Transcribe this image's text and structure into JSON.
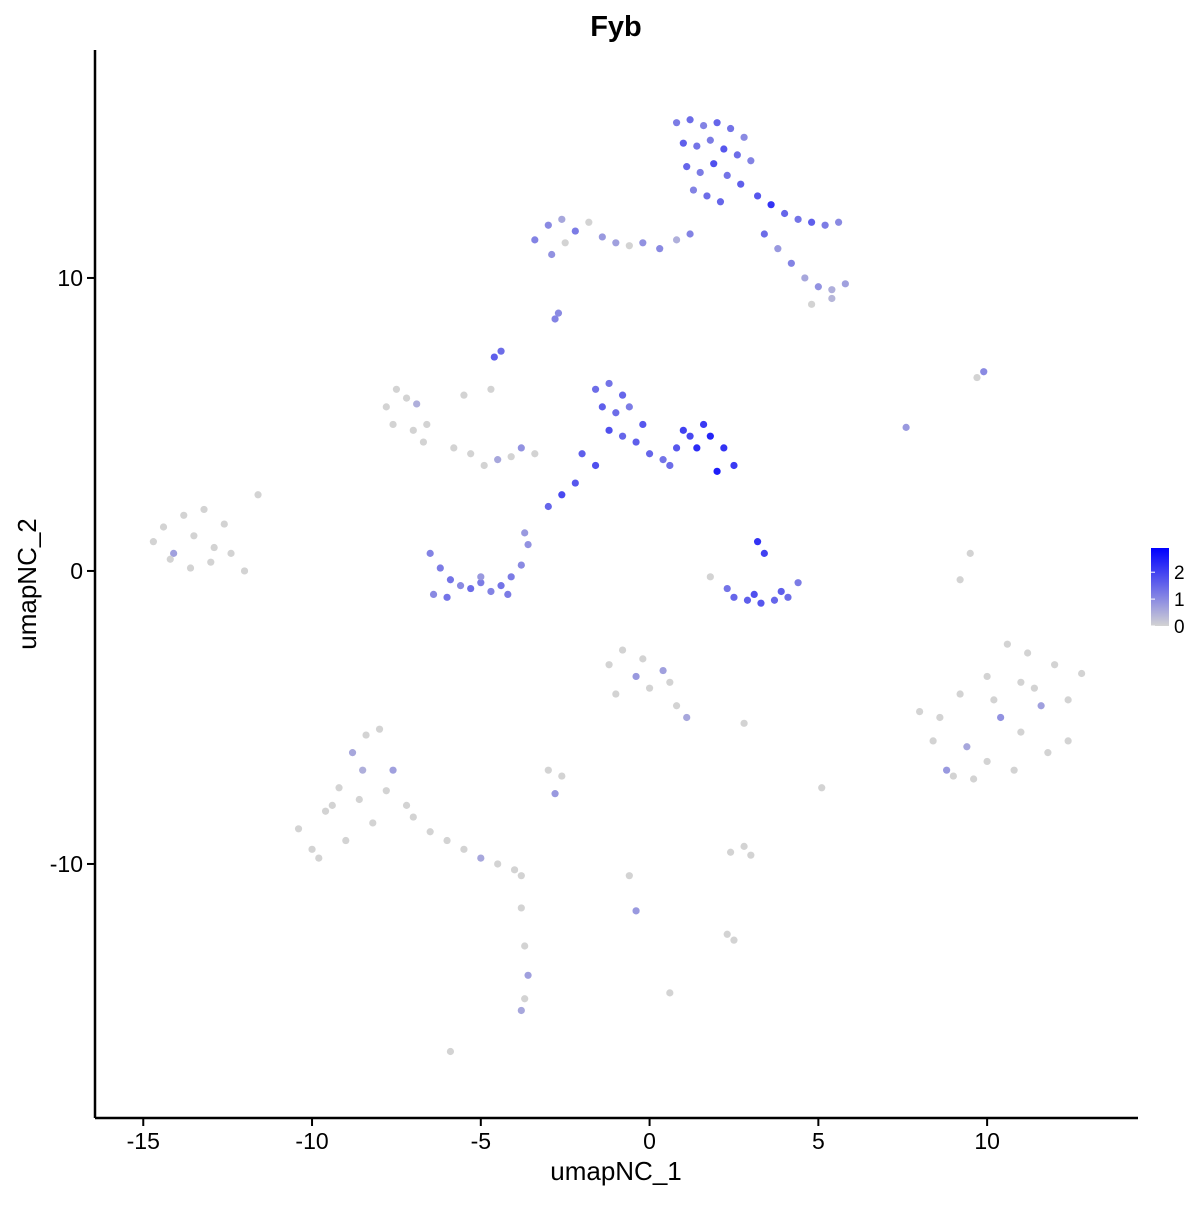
{
  "chart_data": {
    "type": "scatter",
    "title": "Fyb",
    "x_label": "umapNC_1",
    "y_label": "umapNC_2",
    "xlim": [
      -16.43,
      14.47
    ],
    "ylim": [
      -18.67,
      17.78
    ],
    "xticks": [
      -15,
      -10,
      -5,
      0,
      5,
      10
    ],
    "yticks": [
      -10,
      0,
      10
    ],
    "grid": false,
    "low_color": "#d3d3d3",
    "high_color": "#0000ff",
    "color_lim": [
      0,
      2.9
    ],
    "color_ticks": [
      0,
      1,
      2
    ],
    "x": [
      0.8,
      1.2,
      1.6,
      2.0,
      2.4,
      2.8,
      1.0,
      1.4,
      1.8,
      2.2,
      2.6,
      3.0,
      1.1,
      1.5,
      1.9,
      2.3,
      2.7,
      1.3,
      1.7,
      2.1,
      3.2,
      3.6,
      4.0,
      4.4,
      4.8,
      5.2,
      5.6,
      3.4,
      3.8,
      4.2,
      4.6,
      5.0,
      5.4,
      5.8,
      4.8,
      5.4,
      -3.4,
      -3.0,
      -2.6,
      -2.2,
      -1.8,
      -1.4,
      -1.0,
      -0.6,
      -0.2,
      0.3,
      0.8,
      1.2,
      -2.9,
      -2.5,
      -2.8,
      -2.7,
      -4.6,
      -4.4,
      -1.6,
      -1.2,
      -0.8,
      -1.4,
      -1.0,
      -0.6,
      -0.2,
      -1.2,
      -0.8,
      -0.4,
      0.0,
      0.4,
      0.8,
      1.2,
      1.6,
      -2.0,
      -1.6,
      -2.2,
      -2.6,
      0.6,
      1.0,
      1.4,
      1.8,
      2.2,
      2.5,
      2.0,
      -7.8,
      -7.5,
      -7.2,
      -6.9,
      -6.6,
      -7.6,
      -7.0,
      -6.7,
      -5.8,
      -5.3,
      -4.9,
      -4.5,
      -4.1,
      -3.8,
      -3.4,
      -4.7,
      -3.0,
      -5.5,
      -6.5,
      -6.2,
      -5.9,
      -5.6,
      -5.3,
      -5.0,
      -4.7,
      -4.4,
      -4.1,
      -3.8,
      -3.6,
      -6.4,
      -6.0,
      -5.0,
      -4.2,
      -3.7,
      2.5,
      2.9,
      3.3,
      3.7,
      4.1,
      4.4,
      2.3,
      3.1,
      3.9,
      3.2,
      3.4,
      1.8,
      -14.7,
      -14.4,
      -14.1,
      -13.8,
      -13.5,
      -13.2,
      -12.9,
      -12.6,
      -14.2,
      -13.6,
      -13.0,
      -12.4,
      -12.0,
      -11.6,
      8.0,
      8.4,
      8.8,
      9.2,
      9.6,
      10.0,
      10.4,
      10.8,
      11.2,
      11.6,
      12.0,
      12.4,
      12.8,
      8.6,
      9.4,
      10.2,
      11.0,
      11.8,
      12.4,
      9.0,
      10.0,
      11.0,
      11.4,
      10.6,
      -1.2,
      -0.8,
      -0.4,
      0.0,
      0.4,
      0.8,
      -1.0,
      -0.2,
      0.6,
      1.1,
      -10.4,
      -10.0,
      -9.6,
      -9.2,
      -8.8,
      -8.4,
      -8.0,
      -7.6,
      -7.2,
      -9.0,
      -8.6,
      -8.2,
      -7.8,
      -9.8,
      -9.4,
      -8.5,
      -7.0,
      -6.5,
      -6.0,
      -5.5,
      -5.0,
      -4.5,
      -4.0,
      -3.8,
      -3.8,
      -3.7,
      -3.6,
      -3.7,
      -3.8,
      -5.9,
      -3.0,
      -2.6,
      -2.8,
      2.4,
      2.8,
      3.0,
      2.3,
      2.5,
      -0.6,
      -0.4,
      0.6,
      9.5,
      9.7,
      9.9,
      7.6,
      9.2,
      5.1,
      2.8
    ],
    "values": [
      15.3,
      15.4,
      15.2,
      15.3,
      15.1,
      14.8,
      14.6,
      14.5,
      14.7,
      14.4,
      14.2,
      14.0,
      13.8,
      13.6,
      13.9,
      13.5,
      13.2,
      13.0,
      12.8,
      12.6,
      12.8,
      12.5,
      12.2,
      12.0,
      11.9,
      11.8,
      11.9,
      11.5,
      11.0,
      10.5,
      10.0,
      9.7,
      9.6,
      9.8,
      9.1,
      9.3,
      11.3,
      11.8,
      12.0,
      11.6,
      11.9,
      11.4,
      11.2,
      11.1,
      11.2,
      11.0,
      11.3,
      11.5,
      10.8,
      11.2,
      8.6,
      8.8,
      7.3,
      7.5,
      6.2,
      6.4,
      6.0,
      5.6,
      5.4,
      5.6,
      5.0,
      4.8,
      4.6,
      4.4,
      4.0,
      3.8,
      4.2,
      4.6,
      5.0,
      4.0,
      3.6,
      3.0,
      2.6,
      3.6,
      4.8,
      4.2,
      4.6,
      4.2,
      3.6,
      3.4,
      5.6,
      6.2,
      5.9,
      5.7,
      5.0,
      5.0,
      4.8,
      4.4,
      4.2,
      4.0,
      3.6,
      3.8,
      3.9,
      4.2,
      4.0,
      6.2,
      2.2,
      6.0,
      0.6,
      0.1,
      -0.3,
      -0.5,
      -0.6,
      -0.4,
      -0.7,
      -0.5,
      -0.2,
      0.2,
      0.9,
      -0.8,
      -0.9,
      -0.2,
      -0.8,
      1.3,
      -0.9,
      -1.0,
      -1.1,
      -1.0,
      -0.9,
      -0.4,
      -0.6,
      -0.8,
      -0.7,
      1.0,
      0.6,
      -0.2,
      1.0,
      1.5,
      0.6,
      1.9,
      1.2,
      2.1,
      0.8,
      1.6,
      0.4,
      0.1,
      0.3,
      0.6,
      0.0,
      2.6,
      -4.8,
      -5.8,
      -6.8,
      -4.2,
      -7.1,
      -3.6,
      -5.0,
      -6.8,
      -2.8,
      -4.6,
      -3.2,
      -5.8,
      -3.5,
      -5.0,
      -6.0,
      -4.4,
      -3.8,
      -6.2,
      -4.4,
      -7.0,
      -6.5,
      -5.5,
      -4.0,
      -2.5,
      -3.2,
      -2.7,
      -3.6,
      -4.0,
      -3.4,
      -4.6,
      -4.2,
      -3.0,
      -3.8,
      -5.0,
      -8.8,
      -9.5,
      -8.2,
      -7.4,
      -6.2,
      -5.6,
      -5.4,
      -6.8,
      -8.0,
      -9.2,
      -7.8,
      -8.6,
      -7.5,
      -9.8,
      -8.0,
      -6.8,
      -8.4,
      -8.9,
      -9.2,
      -9.5,
      -9.8,
      -10.0,
      -10.2,
      -10.4,
      -11.5,
      -12.8,
      -13.8,
      -14.6,
      -15.0,
      -16.4,
      -6.8,
      -7.0,
      -7.6,
      -9.6,
      -9.4,
      -9.7,
      -12.4,
      -12.6,
      -10.4,
      -11.6,
      -14.4,
      0.6,
      6.6,
      6.8,
      4.9,
      -0.3,
      -7.4,
      -5.2
    ],
    "expression": [
      1.2,
      1.4,
      1.1,
      1.5,
      1.3,
      1.0,
      1.6,
      1.3,
      1.2,
      1.7,
      1.4,
      1.1,
      1.5,
      1.2,
      1.8,
      1.3,
      1.6,
      1.1,
      1.4,
      1.5,
      1.7,
      2.2,
      1.5,
      1.3,
      1.6,
      1.2,
      1.0,
      1.4,
      0.8,
      1.1,
      0.6,
      0.9,
      0.5,
      0.7,
      0,
      0.4,
      1.1,
      1.0,
      0.6,
      1.2,
      0,
      0.8,
      0.7,
      0,
      0.9,
      1.0,
      0.5,
      1.1,
      0.9,
      0,
      1.1,
      1.0,
      1.6,
      1.4,
      1.4,
      1.3,
      1.5,
      1.6,
      1.4,
      1.2,
      1.7,
      1.8,
      1.5,
      1.6,
      1.5,
      1.3,
      1.7,
      1.9,
      2.1,
      1.6,
      1.8,
      1.7,
      1.9,
      1.4,
      2.0,
      2.3,
      2.4,
      2.2,
      2.1,
      2.5,
      0,
      0,
      0,
      0.5,
      0,
      0,
      0,
      0,
      0,
      0,
      0,
      0.6,
      0,
      0.9,
      0,
      0,
      1.5,
      0,
      1.1,
      1.2,
      1.3,
      1.0,
      1.4,
      1.2,
      1.1,
      1.3,
      1.2,
      1.0,
      0.9,
      1.0,
      1.3,
      0.8,
      1.2,
      0.8,
      1.5,
      1.6,
      1.7,
      1.5,
      1.4,
      1.2,
      1.3,
      1.8,
      1.6,
      2.2,
      2.0,
      0,
      0,
      0,
      0.7,
      0,
      0,
      0,
      0,
      0,
      0,
      0,
      0,
      0,
      0,
      0,
      0,
      0,
      0.8,
      0,
      0,
      0,
      0.9,
      0,
      0,
      0.7,
      0,
      0,
      0,
      0,
      0.6,
      0,
      0,
      0,
      0,
      0,
      0,
      0,
      0,
      0,
      0,
      0,
      0.8,
      0,
      0.7,
      0,
      0,
      0,
      0,
      0.6,
      0,
      0,
      0,
      0,
      0.6,
      0,
      0,
      0.7,
      0,
      0,
      0,
      0,
      0,
      0,
      0,
      0.5,
      0,
      0,
      0,
      0,
      0.6,
      0,
      0,
      0,
      0,
      0,
      0.7,
      0,
      0.6,
      0,
      0,
      0,
      0.8,
      0,
      0,
      0,
      0,
      0,
      0,
      0.8,
      0,
      0,
      0,
      1.0,
      0.8,
      0,
      0,
      0
    ]
  }
}
